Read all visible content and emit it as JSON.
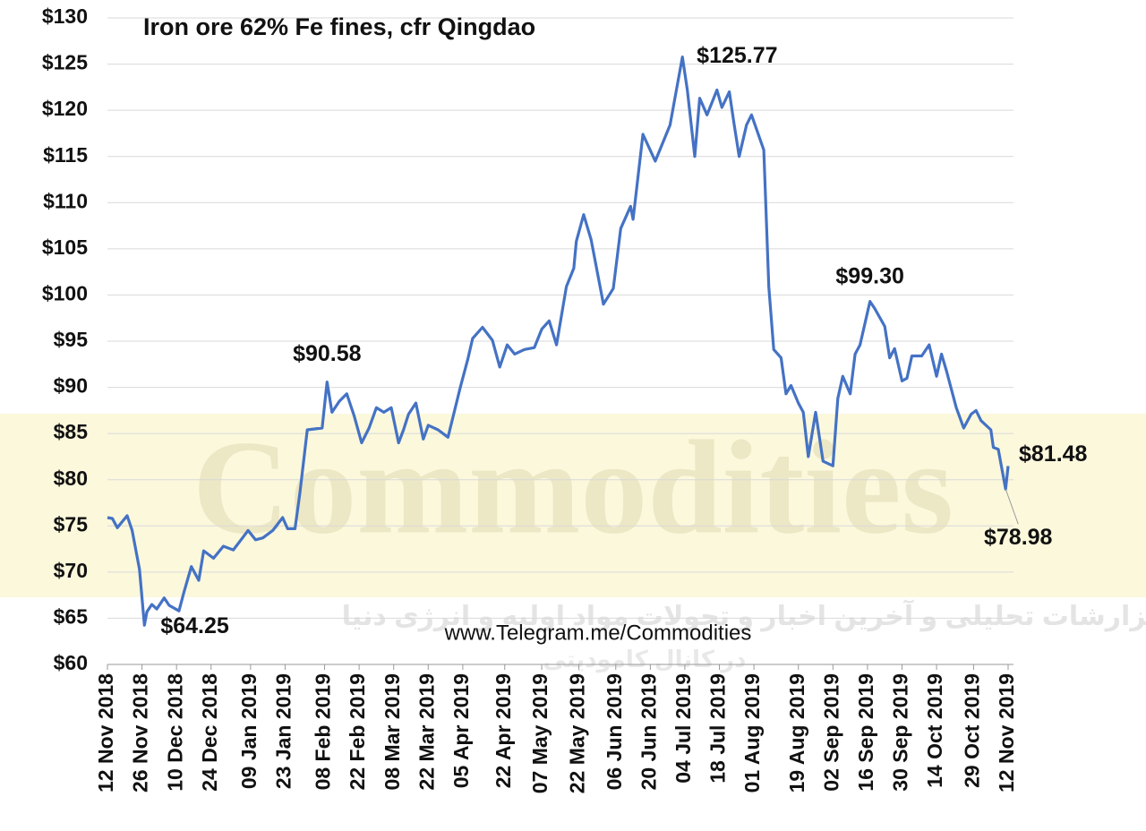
{
  "chart_data": {
    "type": "line",
    "title": "Iron ore 62% Fe fines, cfr Qingdao",
    "source": "www.Telegram.me/Commodities",
    "watermark": "Commodities",
    "watermark_subtitle": "گزارشات تحلیلی و آخرین اخبار و تحولات مواد اولیه و انرژی دنیا",
    "watermark_subtitle_2": "در کانال کامودیتی",
    "grid": true,
    "xlim": [
      "2018-11-12",
      "2019-11-12"
    ],
    "ylim": [
      60,
      130
    ],
    "yticks": [
      {
        "value": 60,
        "label": "$60"
      },
      {
        "value": 65,
        "label": "$65"
      },
      {
        "value": 70,
        "label": "$70"
      },
      {
        "value": 75,
        "label": "$75"
      },
      {
        "value": 80,
        "label": "$80"
      },
      {
        "value": 85,
        "label": "$85"
      },
      {
        "value": 90,
        "label": "$90"
      },
      {
        "value": 95,
        "label": "$95"
      },
      {
        "value": 100,
        "label": "$100"
      },
      {
        "value": 105,
        "label": "$105"
      },
      {
        "value": 110,
        "label": "$110"
      },
      {
        "value": 115,
        "label": "$115"
      },
      {
        "value": 120,
        "label": "$120"
      },
      {
        "value": 125,
        "label": "$125"
      },
      {
        "value": 130,
        "label": "$130"
      }
    ],
    "xticks": [
      {
        "value": "2018-11-12",
        "label": "12 Nov 2018"
      },
      {
        "value": "2018-11-26",
        "label": "26 Nov 2018"
      },
      {
        "value": "2018-12-10",
        "label": "10 Dec 2018"
      },
      {
        "value": "2018-12-24",
        "label": "24 Dec 2018"
      },
      {
        "value": "2019-01-09",
        "label": "09 Jan 2019"
      },
      {
        "value": "2019-01-23",
        "label": "23 Jan 2019"
      },
      {
        "value": "2019-02-08",
        "label": "08 Feb 2019"
      },
      {
        "value": "2019-02-22",
        "label": "22 Feb 2019"
      },
      {
        "value": "2019-03-08",
        "label": "08 Mar 2019"
      },
      {
        "value": "2019-03-22",
        "label": "22 Mar 2019"
      },
      {
        "value": "2019-04-05",
        "label": "05 Apr 2019"
      },
      {
        "value": "2019-04-22",
        "label": "22 Apr 2019"
      },
      {
        "value": "2019-05-07",
        "label": "07 May 2019"
      },
      {
        "value": "2019-05-22",
        "label": "22 May 2019"
      },
      {
        "value": "2019-06-06",
        "label": "06 Jun 2019"
      },
      {
        "value": "2019-06-20",
        "label": "20 Jun 2019"
      },
      {
        "value": "2019-07-04",
        "label": "04 Jul 2019"
      },
      {
        "value": "2019-07-18",
        "label": "18 Jul 2019"
      },
      {
        "value": "2019-08-01",
        "label": "01 Aug 2019"
      },
      {
        "value": "2019-08-19",
        "label": "19 Aug 2019"
      },
      {
        "value": "2019-09-02",
        "label": "02 Sep 2019"
      },
      {
        "value": "2019-09-16",
        "label": "16 Sep 2019"
      },
      {
        "value": "2019-09-30",
        "label": "30 Sep 2019"
      },
      {
        "value": "2019-10-14",
        "label": "14 Oct 2019"
      },
      {
        "value": "2019-10-29",
        "label": "29 Oct 2019"
      },
      {
        "value": "2019-11-12",
        "label": "12 Nov 2019"
      }
    ],
    "x": [
      "2018-11-12",
      "2018-11-14",
      "2018-11-16",
      "2018-11-20",
      "2018-11-22",
      "2018-11-25",
      "2018-11-27",
      "2018-11-28",
      "2018-11-30",
      "2018-12-02",
      "2018-12-05",
      "2018-12-07",
      "2018-12-11",
      "2018-12-13",
      "2018-12-16",
      "2018-12-19",
      "2018-12-21",
      "2018-12-25",
      "2018-12-29",
      "2019-01-02",
      "2019-01-06",
      "2019-01-08",
      "2019-01-11",
      "2019-01-14",
      "2019-01-18",
      "2019-01-22",
      "2019-01-24",
      "2019-01-27",
      "2019-01-29",
      "2019-02-01",
      "2019-02-07",
      "2019-02-09",
      "2019-02-11",
      "2019-02-14",
      "2019-02-17",
      "2019-02-20",
      "2019-02-23",
      "2019-02-26",
      "2019-03-01",
      "2019-03-04",
      "2019-03-07",
      "2019-03-10",
      "2019-03-12",
      "2019-03-14",
      "2019-03-17",
      "2019-03-20",
      "2019-03-22",
      "2019-03-26",
      "2019-03-30",
      "2019-04-04",
      "2019-04-07",
      "2019-04-09",
      "2019-04-13",
      "2019-04-17",
      "2019-04-20",
      "2019-04-23",
      "2019-04-26",
      "2019-04-30",
      "2019-05-04",
      "2019-05-07",
      "2019-05-10",
      "2019-05-13",
      "2019-05-17",
      "2019-05-20",
      "2019-05-21",
      "2019-05-24",
      "2019-05-27",
      "2019-06-01",
      "2019-06-05",
      "2019-06-08",
      "2019-06-12",
      "2019-06-13",
      "2019-06-17",
      "2019-06-22",
      "2019-06-28",
      "2019-07-03",
      "2019-07-05",
      "2019-07-08",
      "2019-07-10",
      "2019-07-13",
      "2019-07-17",
      "2019-07-19",
      "2019-07-22",
      "2019-07-24",
      "2019-07-26",
      "2019-07-29",
      "2019-07-31",
      "2019-08-05",
      "2019-08-07",
      "2019-08-09",
      "2019-08-12",
      "2019-08-14",
      "2019-08-16",
      "2019-08-19",
      "2019-08-21",
      "2019-08-23",
      "2019-08-26",
      "2019-08-29",
      "2019-09-02",
      "2019-09-04",
      "2019-09-06",
      "2019-09-09",
      "2019-09-11",
      "2019-09-13",
      "2019-09-17",
      "2019-09-19",
      "2019-09-23",
      "2019-09-25",
      "2019-09-27",
      "2019-09-30",
      "2019-10-02",
      "2019-10-04",
      "2019-10-08",
      "2019-10-11",
      "2019-10-14",
      "2019-10-16",
      "2019-10-18",
      "2019-10-22",
      "2019-10-25",
      "2019-10-28",
      "2019-10-30",
      "2019-11-01",
      "2019-11-05",
      "2019-11-06",
      "2019-11-08",
      "2019-11-11",
      "2019-11-12"
    ],
    "series": [
      {
        "name": "Iron ore 62% Fe fines",
        "color": "#4472c4",
        "values": [
          75.9,
          75.8,
          74.8,
          76.1,
          74.5,
          70.3,
          64.25,
          65.7,
          66.5,
          66.0,
          67.2,
          66.4,
          65.8,
          67.8,
          70.6,
          69.1,
          72.3,
          71.5,
          72.8,
          72.4,
          73.8,
          74.5,
          73.5,
          73.7,
          74.5,
          75.9,
          74.7,
          74.7,
          78.6,
          85.4,
          85.6,
          90.58,
          87.3,
          88.5,
          89.3,
          86.9,
          84.0,
          85.6,
          87.8,
          87.3,
          87.8,
          84.0,
          85.4,
          87.1,
          88.3,
          84.4,
          85.9,
          85.4,
          84.6,
          90.0,
          93.0,
          95.3,
          96.5,
          95.1,
          92.2,
          94.6,
          93.6,
          94.1,
          94.3,
          96.3,
          97.2,
          94.6,
          100.9,
          102.9,
          105.8,
          108.7,
          106.0,
          99.0,
          100.7,
          107.2,
          109.6,
          108.2,
          117.4,
          114.5,
          118.4,
          125.77,
          122.2,
          115.0,
          121.3,
          119.5,
          122.2,
          120.3,
          122.0,
          118.4,
          115.0,
          118.4,
          119.5,
          115.7,
          100.9,
          94.1,
          93.2,
          89.3,
          90.2,
          88.3,
          87.3,
          82.5,
          87.3,
          82.0,
          81.5,
          88.8,
          91.2,
          89.3,
          93.6,
          94.6,
          99.3,
          98.5,
          96.6,
          93.2,
          94.2,
          90.7,
          91.0,
          93.4,
          93.4,
          94.6,
          91.2,
          93.6,
          91.8,
          87.8,
          85.6,
          87.1,
          87.5,
          86.4,
          85.4,
          83.5,
          83.3,
          78.98,
          81.48
        ]
      }
    ],
    "annotations": [
      {
        "label": "$64.25",
        "x": "2018-11-27",
        "y": 64.25
      },
      {
        "label": "$90.58",
        "x": "2019-02-09",
        "y": 90.58
      },
      {
        "label": "$125.77",
        "x": "2019-07-03",
        "y": 125.77
      },
      {
        "label": "$99.30",
        "x": "2019-09-17",
        "y": 99.3
      },
      {
        "label": "$81.48",
        "x": "2019-11-12",
        "y": 81.48
      },
      {
        "label": "$78.98",
        "x": "2019-11-11",
        "y": 78.98
      }
    ]
  }
}
